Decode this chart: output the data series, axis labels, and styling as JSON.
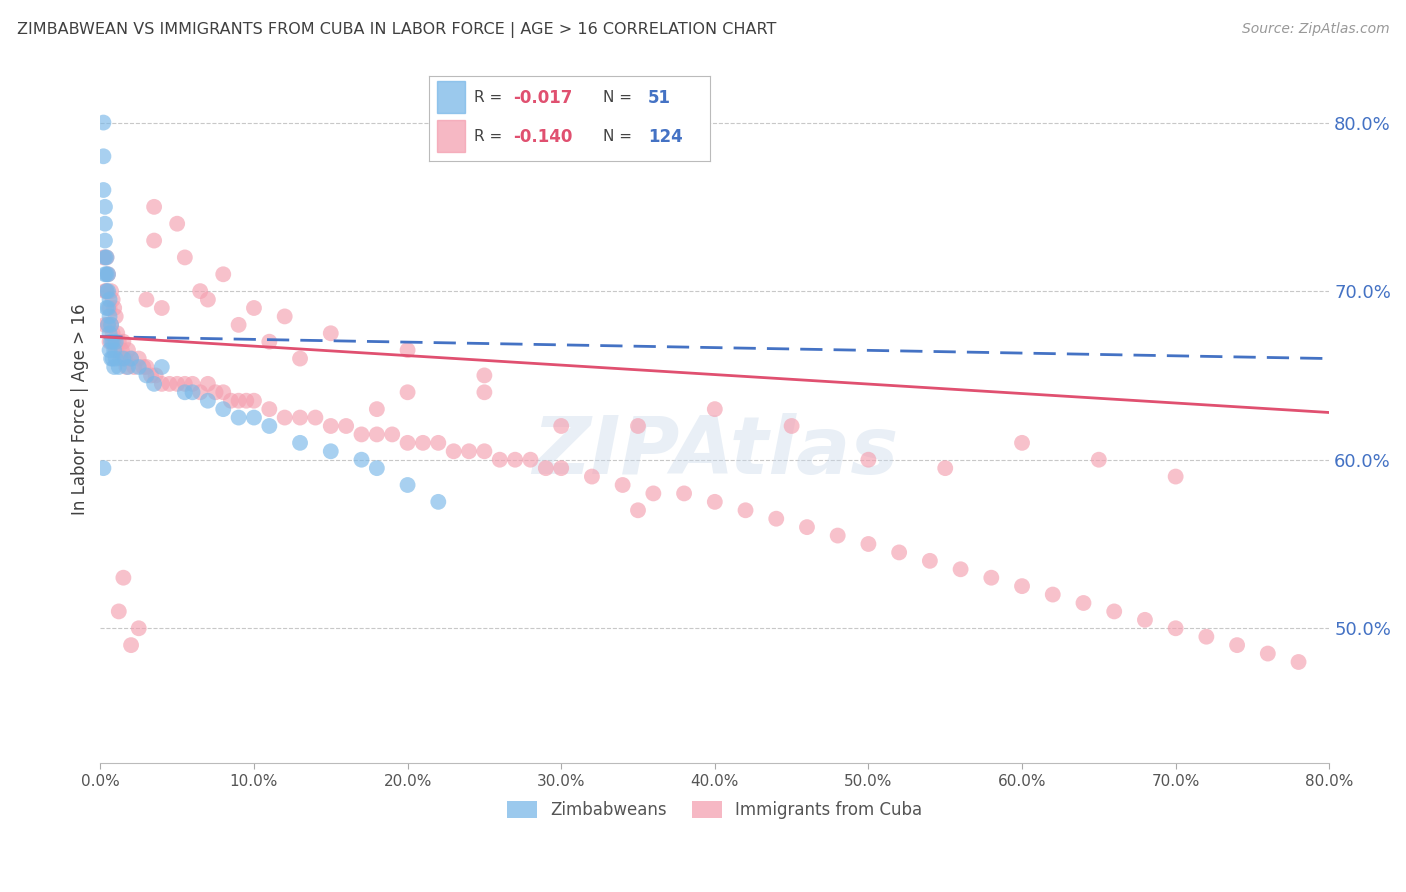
{
  "title": "ZIMBABWEAN VS IMMIGRANTS FROM CUBA IN LABOR FORCE | AGE > 16 CORRELATION CHART",
  "source": "Source: ZipAtlas.com",
  "ylabel": "In Labor Force | Age > 16",
  "right_ytick_labels": [
    "50.0%",
    "60.0%",
    "70.0%",
    "80.0%"
  ],
  "right_ytick_values": [
    0.5,
    0.6,
    0.7,
    0.8
  ],
  "bottom_xtick_labels": [
    "0.0%",
    "10.0%",
    "20.0%",
    "30.0%",
    "40.0%",
    "50.0%",
    "60.0%",
    "70.0%",
    "80.0%"
  ],
  "bottom_xtick_values": [
    0.0,
    0.1,
    0.2,
    0.3,
    0.4,
    0.5,
    0.6,
    0.7,
    0.8
  ],
  "xlim": [
    0.0,
    0.8
  ],
  "ylim": [
    0.42,
    0.84
  ],
  "zim_color": "#7ab8e8",
  "cuba_color": "#f4a0b0",
  "legend_label_zim": "Zimbabweans",
  "legend_label_cuba": "Immigrants from Cuba",
  "watermark": "ZIPAtlas",
  "background_color": "#ffffff",
  "grid_color": "#c8c8c8",
  "right_axis_color": "#4472c4",
  "title_color": "#404040",
  "zim_trend_color": "#4472c4",
  "cuba_trend_color": "#e05070",
  "legend_R_color": "#e05070",
  "legend_N_color": "#4472c4",
  "zim_x": [
    0.002,
    0.002,
    0.002,
    0.003,
    0.003,
    0.003,
    0.003,
    0.003,
    0.004,
    0.004,
    0.004,
    0.004,
    0.005,
    0.005,
    0.005,
    0.005,
    0.006,
    0.006,
    0.006,
    0.006,
    0.007,
    0.007,
    0.007,
    0.008,
    0.008,
    0.009,
    0.009,
    0.01,
    0.01,
    0.012,
    0.015,
    0.018,
    0.02,
    0.025,
    0.03,
    0.035,
    0.04,
    0.055,
    0.06,
    0.07,
    0.08,
    0.09,
    0.1,
    0.11,
    0.13,
    0.15,
    0.17,
    0.18,
    0.2,
    0.22,
    0.002
  ],
  "zim_y": [
    0.8,
    0.78,
    0.76,
    0.75,
    0.74,
    0.73,
    0.72,
    0.71,
    0.72,
    0.71,
    0.7,
    0.69,
    0.71,
    0.7,
    0.69,
    0.68,
    0.695,
    0.685,
    0.675,
    0.665,
    0.68,
    0.67,
    0.66,
    0.67,
    0.66,
    0.665,
    0.655,
    0.67,
    0.66,
    0.655,
    0.66,
    0.655,
    0.66,
    0.655,
    0.65,
    0.645,
    0.655,
    0.64,
    0.64,
    0.635,
    0.63,
    0.625,
    0.625,
    0.62,
    0.61,
    0.605,
    0.6,
    0.595,
    0.585,
    0.575,
    0.595
  ],
  "cuba_x": [
    0.002,
    0.003,
    0.003,
    0.004,
    0.004,
    0.005,
    0.005,
    0.006,
    0.006,
    0.007,
    0.007,
    0.008,
    0.008,
    0.009,
    0.009,
    0.01,
    0.01,
    0.011,
    0.012,
    0.013,
    0.014,
    0.015,
    0.016,
    0.017,
    0.018,
    0.02,
    0.022,
    0.025,
    0.028,
    0.03,
    0.033,
    0.036,
    0.04,
    0.045,
    0.05,
    0.055,
    0.06,
    0.065,
    0.07,
    0.075,
    0.08,
    0.085,
    0.09,
    0.095,
    0.1,
    0.11,
    0.12,
    0.13,
    0.14,
    0.15,
    0.16,
    0.17,
    0.18,
    0.19,
    0.2,
    0.21,
    0.22,
    0.23,
    0.24,
    0.25,
    0.26,
    0.27,
    0.28,
    0.29,
    0.3,
    0.32,
    0.34,
    0.36,
    0.38,
    0.4,
    0.42,
    0.44,
    0.46,
    0.48,
    0.5,
    0.52,
    0.54,
    0.56,
    0.58,
    0.6,
    0.62,
    0.64,
    0.66,
    0.68,
    0.7,
    0.72,
    0.74,
    0.76,
    0.78,
    0.035,
    0.05,
    0.08,
    0.1,
    0.03,
    0.07,
    0.12,
    0.15,
    0.2,
    0.25,
    0.055,
    0.035,
    0.04,
    0.065,
    0.09,
    0.11,
    0.13,
    0.18,
    0.3,
    0.35,
    0.4,
    0.5,
    0.35,
    0.25,
    0.2,
    0.7,
    0.6,
    0.45,
    0.55,
    0.65,
    0.012,
    0.02,
    0.015,
    0.025
  ],
  "cuba_y": [
    0.72,
    0.7,
    0.68,
    0.72,
    0.7,
    0.68,
    0.71,
    0.69,
    0.67,
    0.7,
    0.68,
    0.695,
    0.675,
    0.69,
    0.67,
    0.685,
    0.665,
    0.675,
    0.67,
    0.66,
    0.665,
    0.67,
    0.66,
    0.655,
    0.665,
    0.66,
    0.655,
    0.66,
    0.655,
    0.655,
    0.65,
    0.65,
    0.645,
    0.645,
    0.645,
    0.645,
    0.645,
    0.64,
    0.645,
    0.64,
    0.64,
    0.635,
    0.635,
    0.635,
    0.635,
    0.63,
    0.625,
    0.625,
    0.625,
    0.62,
    0.62,
    0.615,
    0.615,
    0.615,
    0.61,
    0.61,
    0.61,
    0.605,
    0.605,
    0.605,
    0.6,
    0.6,
    0.6,
    0.595,
    0.595,
    0.59,
    0.585,
    0.58,
    0.58,
    0.575,
    0.57,
    0.565,
    0.56,
    0.555,
    0.55,
    0.545,
    0.54,
    0.535,
    0.53,
    0.525,
    0.52,
    0.515,
    0.51,
    0.505,
    0.5,
    0.495,
    0.49,
    0.485,
    0.48,
    0.73,
    0.74,
    0.71,
    0.69,
    0.695,
    0.695,
    0.685,
    0.675,
    0.665,
    0.65,
    0.72,
    0.75,
    0.69,
    0.7,
    0.68,
    0.67,
    0.66,
    0.63,
    0.62,
    0.62,
    0.63,
    0.6,
    0.57,
    0.64,
    0.64,
    0.59,
    0.61,
    0.62,
    0.595,
    0.6,
    0.51,
    0.49,
    0.53,
    0.5
  ]
}
